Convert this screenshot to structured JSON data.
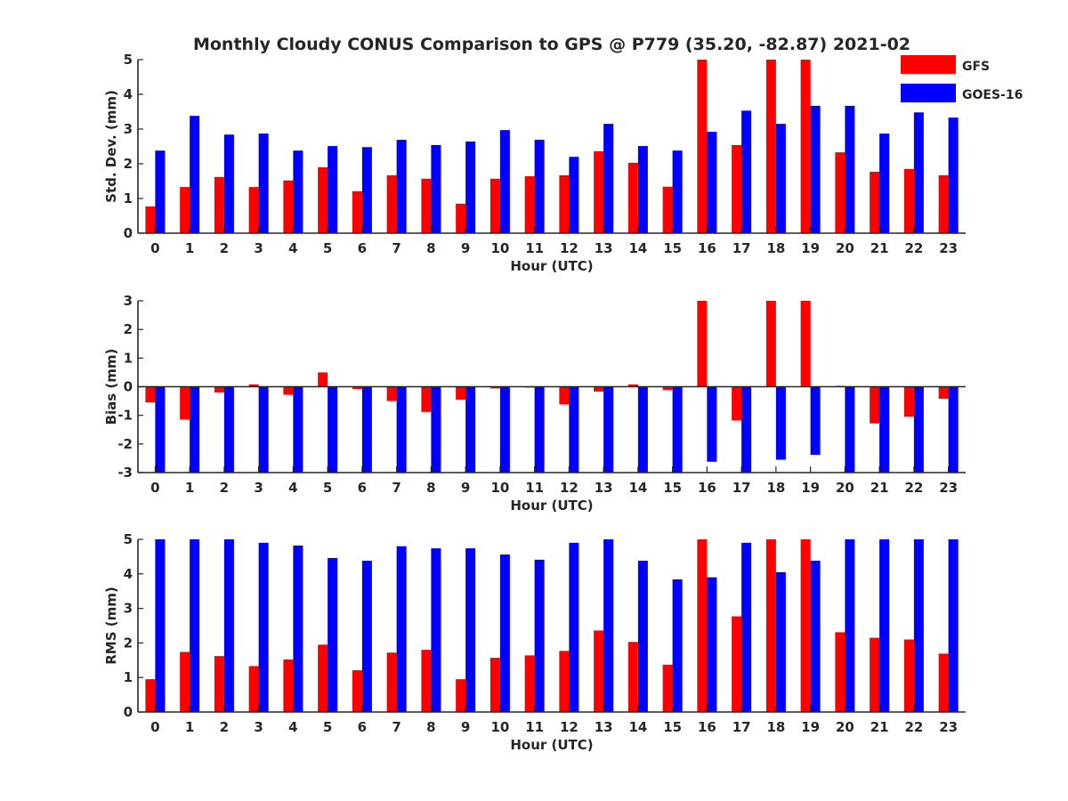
{
  "figure_title": "Monthly Cloudy CONUS Comparison to GPS @ P779 (35.20, -82.87) 2021-02",
  "legend": [
    {
      "label": "GFS",
      "color": "#ff0000"
    },
    {
      "label": "GOES-16",
      "color": "#0000ff"
    }
  ],
  "chart_data": [
    {
      "type": "bar",
      "title": "Monthly Cloudy CONUS Comparison to GPS @ P779 (35.20, -82.87) 2021-02",
      "xlabel": "Hour (UTC)",
      "ylabel": "Std. Dev. (mm)",
      "ylim": [
        0,
        5
      ],
      "yticks": [
        0,
        1,
        2,
        3,
        4,
        5
      ],
      "categories": [
        0,
        1,
        2,
        3,
        4,
        5,
        6,
        7,
        8,
        9,
        10,
        11,
        12,
        13,
        14,
        15,
        16,
        17,
        18,
        19,
        20,
        21,
        22,
        23
      ],
      "legend_position": "top-right (outside)",
      "series": [
        {
          "name": "GFS",
          "color": "#ff0000",
          "values": [
            0.77,
            1.33,
            1.62,
            1.33,
            1.52,
            1.9,
            1.21,
            1.67,
            1.57,
            0.85,
            1.57,
            1.64,
            1.67,
            2.36,
            2.03,
            1.34,
            5.0,
            2.54,
            5.0,
            5.0,
            2.33,
            1.77,
            1.85,
            1.67
          ]
        },
        {
          "name": "GOES-16",
          "color": "#0000ff",
          "values": [
            2.38,
            3.38,
            2.84,
            2.87,
            2.38,
            2.51,
            2.48,
            2.69,
            2.54,
            2.64,
            2.97,
            2.69,
            2.2,
            3.15,
            2.51,
            2.38,
            2.92,
            3.53,
            3.15,
            3.67,
            3.67,
            2.87,
            3.48,
            3.33
          ]
        }
      ]
    },
    {
      "type": "bar",
      "xlabel": "Hour (UTC)",
      "ylabel": "Bias (mm)",
      "ylim": [
        -3,
        3
      ],
      "yticks": [
        -3,
        -2,
        -1,
        0,
        1,
        2,
        3
      ],
      "categories": [
        0,
        1,
        2,
        3,
        4,
        5,
        6,
        7,
        8,
        9,
        10,
        11,
        12,
        13,
        14,
        15,
        16,
        17,
        18,
        19,
        20,
        21,
        22,
        23
      ],
      "series": [
        {
          "name": "GFS",
          "color": "#ff0000",
          "values": [
            -0.55,
            -1.15,
            -0.2,
            0.08,
            -0.28,
            0.5,
            -0.08,
            -0.5,
            -0.88,
            -0.45,
            -0.06,
            -0.03,
            -0.62,
            -0.17,
            0.08,
            -0.12,
            3.0,
            -1.18,
            3.0,
            3.0,
            0.03,
            -1.28,
            -1.05,
            -0.42
          ]
        },
        {
          "name": "GOES-16",
          "color": "#0000ff",
          "values": [
            -3.0,
            -3.0,
            -3.0,
            -3.0,
            -3.0,
            -3.0,
            -3.0,
            -3.0,
            -3.0,
            -3.0,
            -3.0,
            -3.0,
            -3.0,
            -3.0,
            -3.0,
            -3.0,
            -2.62,
            -3.0,
            -2.55,
            -2.38,
            -3.0,
            -3.0,
            -3.0,
            -3.0
          ]
        }
      ]
    },
    {
      "type": "bar",
      "xlabel": "Hour (UTC)",
      "ylabel": "RMS (mm)",
      "ylim": [
        0,
        5
      ],
      "yticks": [
        0,
        1,
        2,
        3,
        4,
        5
      ],
      "categories": [
        0,
        1,
        2,
        3,
        4,
        5,
        6,
        7,
        8,
        9,
        10,
        11,
        12,
        13,
        14,
        15,
        16,
        17,
        18,
        19,
        20,
        21,
        22,
        23
      ],
      "series": [
        {
          "name": "GFS",
          "color": "#ff0000",
          "values": [
            0.95,
            1.74,
            1.62,
            1.33,
            1.52,
            1.95,
            1.21,
            1.72,
            1.8,
            0.95,
            1.57,
            1.64,
            1.77,
            2.36,
            2.03,
            1.37,
            5.0,
            2.77,
            5.0,
            5.0,
            2.31,
            2.15,
            2.1,
            1.69
          ]
        },
        {
          "name": "GOES-16",
          "color": "#0000ff",
          "values": [
            5.0,
            5.0,
            5.0,
            4.9,
            4.82,
            4.46,
            4.38,
            4.8,
            4.74,
            4.74,
            4.56,
            4.41,
            4.9,
            5.0,
            4.38,
            3.84,
            3.9,
            4.9,
            4.05,
            4.38,
            5.0,
            5.0,
            5.0,
            5.0
          ]
        }
      ]
    }
  ]
}
